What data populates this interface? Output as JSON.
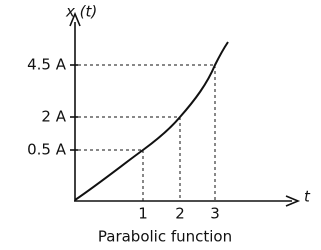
{
  "axes": {
    "y_label": "x (t)",
    "x_label": "t"
  },
  "y_ticks": [
    "0.5 A",
    "2 A",
    "4.5 A"
  ],
  "x_ticks": [
    "1",
    "2",
    "3"
  ],
  "caption": "Parabolic function"
}
